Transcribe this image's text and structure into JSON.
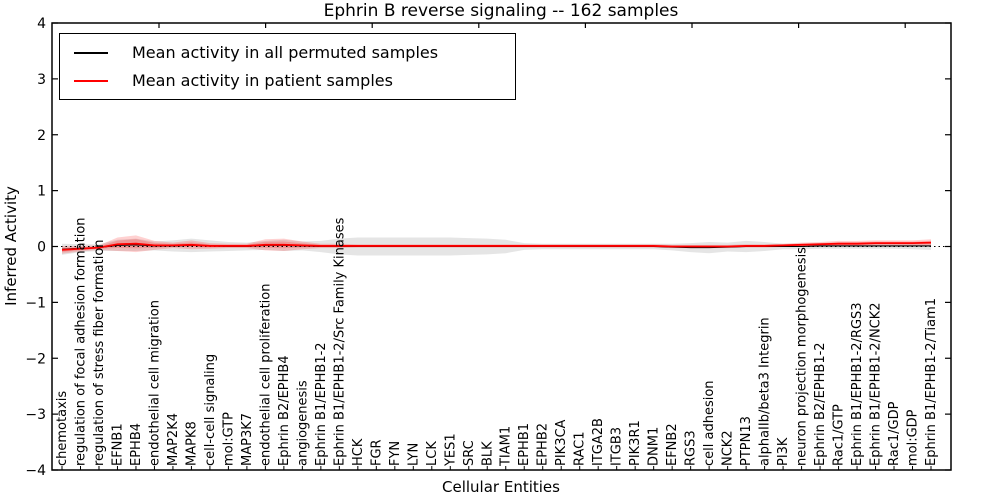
{
  "legend": {
    "entries": [
      {
        "label": "Mean activity in all permuted samples",
        "color": "#000000"
      },
      {
        "label": "Mean activity in patient samples",
        "color": "#ff0000"
      }
    ]
  },
  "chart_data": {
    "type": "line",
    "title": "Ephrin B reverse signaling -- 162 samples",
    "xlabel": "Cellular Entities",
    "ylabel": "Inferred Activity",
    "ylim": [
      -4,
      4
    ],
    "yticks": [
      4,
      3,
      2,
      1,
      0,
      -1,
      -2,
      -3,
      -4
    ],
    "grid": false,
    "legend_position": "upper left",
    "zero_reference_line": {
      "y": 0,
      "style": "dotted",
      "color": "#000000"
    },
    "categories": [
      "chemotaxis",
      "regulation of focal adhesion formation",
      "regulation of stress fiber formation",
      "EFNB1",
      "EPHB4",
      "endothelial cell migration",
      "MAP2K4",
      "MAPK8",
      "cell-cell signaling",
      "mol:GTP",
      "MAP3K7",
      "endothelial cell proliferation",
      "Ephrin B2/EPHB4",
      "angiogenesis",
      "Ephrin B1/EPHB1-2",
      "Ephrin B1/EPHB1-2/Src Family Kinases",
      "HCK",
      "FGR",
      "FYN",
      "LYN",
      "LCK",
      "YES1",
      "SRC",
      "BLK",
      "TIAM1",
      "EPHB1",
      "EPHB2",
      "PIK3CA",
      "RAC1",
      "ITGA2B",
      "ITGB3",
      "PIK3R1",
      "DNM1",
      "EFNB2",
      "RGS3",
      "cell adhesion",
      "NCK2",
      "PTPN13",
      "alphaIIb/beta3 Integrin",
      "PI3K",
      "neuron projection morphogenesis",
      "Ephrin B2/EPHB1-2",
      "Rac1/GTP",
      "Ephrin B1/EPHB1-2/RGS3",
      "Ephrin B1/EPHB1-2/NCK2",
      "Rac1/GDP",
      "mol:GDP",
      "Ephrin B1/EPHB1-2/Tiam1"
    ],
    "series": [
      {
        "name": "Mean activity in all permuted samples",
        "color": "#000000",
        "line_style": "solid",
        "band_color": "#999999",
        "band_opacity": 0.25,
        "mean": [
          -0.05,
          -0.03,
          -0.02,
          0.02,
          0.03,
          0.01,
          0.01,
          0.02,
          0.01,
          0.0,
          0.0,
          0.02,
          0.02,
          0.01,
          0.0,
          0.0,
          0.0,
          0.0,
          0.0,
          0.0,
          0.0,
          0.0,
          0.0,
          0.0,
          0.0,
          0.0,
          0.0,
          0.0,
          0.0,
          0.0,
          0.0,
          0.0,
          0.0,
          -0.01,
          -0.02,
          -0.02,
          -0.01,
          0.0,
          0.0,
          0.0,
          0.0,
          0.01,
          0.01,
          0.01,
          0.01,
          0.01,
          0.01,
          0.01
        ],
        "std": [
          0.1,
          0.07,
          0.06,
          0.1,
          0.11,
          0.08,
          0.1,
          0.12,
          0.1,
          0.08,
          0.07,
          0.08,
          0.1,
          0.08,
          0.1,
          0.14,
          0.16,
          0.16,
          0.16,
          0.16,
          0.16,
          0.16,
          0.15,
          0.14,
          0.12,
          0.06,
          0.05,
          0.05,
          0.05,
          0.05,
          0.05,
          0.05,
          0.05,
          0.06,
          0.08,
          0.1,
          0.08,
          0.1,
          0.08,
          0.05,
          0.05,
          0.05,
          0.05,
          0.05,
          0.05,
          0.05,
          0.06,
          0.07
        ]
      },
      {
        "name": "Mean activity in patient samples",
        "color": "#ff0000",
        "line_style": "solid",
        "band_color": "#ff0000",
        "band_opacity": 0.18,
        "mean": [
          -0.06,
          -0.04,
          -0.02,
          0.04,
          0.05,
          0.02,
          0.02,
          0.03,
          0.01,
          0.01,
          0.01,
          0.03,
          0.03,
          0.02,
          0.01,
          0.01,
          0.01,
          0.01,
          0.01,
          0.01,
          0.01,
          0.01,
          0.01,
          0.01,
          0.01,
          0.01,
          0.01,
          0.01,
          0.01,
          0.01,
          0.01,
          0.01,
          0.01,
          0.0,
          0.0,
          0.0,
          0.0,
          0.01,
          0.01,
          0.02,
          0.03,
          0.04,
          0.05,
          0.05,
          0.06,
          0.06,
          0.06,
          0.07
        ],
        "std": [
          0.07,
          0.05,
          0.04,
          0.12,
          0.15,
          0.08,
          0.05,
          0.08,
          0.05,
          0.04,
          0.04,
          0.1,
          0.11,
          0.07,
          0.04,
          0.04,
          0.03,
          0.03,
          0.03,
          0.03,
          0.03,
          0.03,
          0.03,
          0.03,
          0.03,
          0.03,
          0.03,
          0.03,
          0.03,
          0.03,
          0.03,
          0.03,
          0.03,
          0.03,
          0.03,
          0.03,
          0.03,
          0.03,
          0.03,
          0.03,
          0.04,
          0.04,
          0.05,
          0.05,
          0.05,
          0.05,
          0.05,
          0.06
        ]
      }
    ]
  }
}
